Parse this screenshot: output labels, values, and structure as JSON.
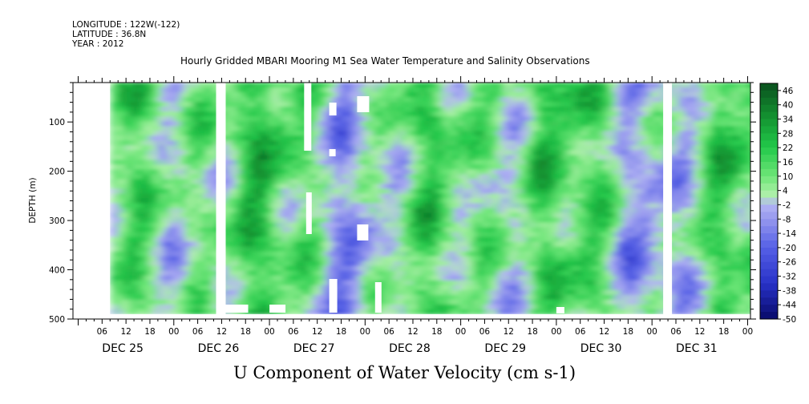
{
  "header": {
    "longitude": "LONGITUDE : 122W(-122)",
    "latitude": "LATITUDE : 36.8N",
    "year": "YEAR : 2012"
  },
  "chart_data": {
    "type": "heatmap",
    "title": "Hourly Gridded MBARI Mooring M1 Sea Water Temperature and Salinity Observations",
    "xlabel": "U Component of Water Velocity (cm s-1)",
    "ylabel": "DEPTH (m)",
    "y_ticks": [
      100,
      200,
      300,
      400,
      500
    ],
    "y_range": [
      20,
      500
    ],
    "y_inverted": true,
    "x_hour_labels": [
      "06",
      "12",
      "18",
      "00",
      "06",
      "12",
      "18",
      "00",
      "06",
      "12",
      "18",
      "00",
      "06",
      "12",
      "18",
      "00",
      "06",
      "12",
      "18",
      "00",
      "06",
      "12",
      "18",
      "00",
      "06",
      "12",
      "18",
      "00"
    ],
    "x_day_labels": [
      "DEC 25",
      "DEC 26",
      "DEC 27",
      "DEC 28",
      "DEC 29",
      "DEC 30",
      "DEC 31"
    ],
    "colorbar_labels": [
      "46",
      "40",
      "34",
      "28",
      "22",
      "16",
      "10",
      "4",
      "-2",
      "-8",
      "-14",
      "-20",
      "-26",
      "-32",
      "-38",
      "-44",
      "-50"
    ],
    "colorbar_range": [
      -50,
      49
    ],
    "colors": {
      "positive_strong": "#0a5a1e",
      "positive_mid": "#22c94a",
      "positive_weak": "#9ef09a",
      "negative_weak": "#a9aaf2",
      "negative_mid": "#5560e6",
      "negative_strong": "#080a6a"
    }
  }
}
